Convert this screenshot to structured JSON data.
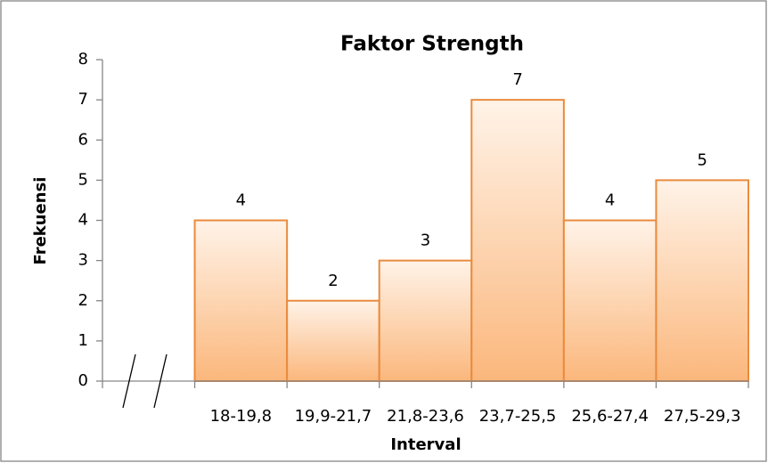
{
  "chart_data": {
    "type": "bar",
    "title": "Faktor Strength",
    "x_label": "Interval",
    "y_label": "Frekuensi",
    "categories": [
      null,
      "18-19,8",
      "19,9-21,7",
      "21,8-23,6",
      "23,7-25,5",
      "25,6-27,4",
      "27,5-29,3"
    ],
    "values": [
      null,
      4,
      2,
      3,
      7,
      4,
      5
    ],
    "color": "#fbb77c",
    "ylim": [
      0,
      8
    ],
    "yticks": [
      0,
      1,
      2,
      3,
      4,
      5,
      6,
      7,
      8
    ],
    "grid": false
  }
}
